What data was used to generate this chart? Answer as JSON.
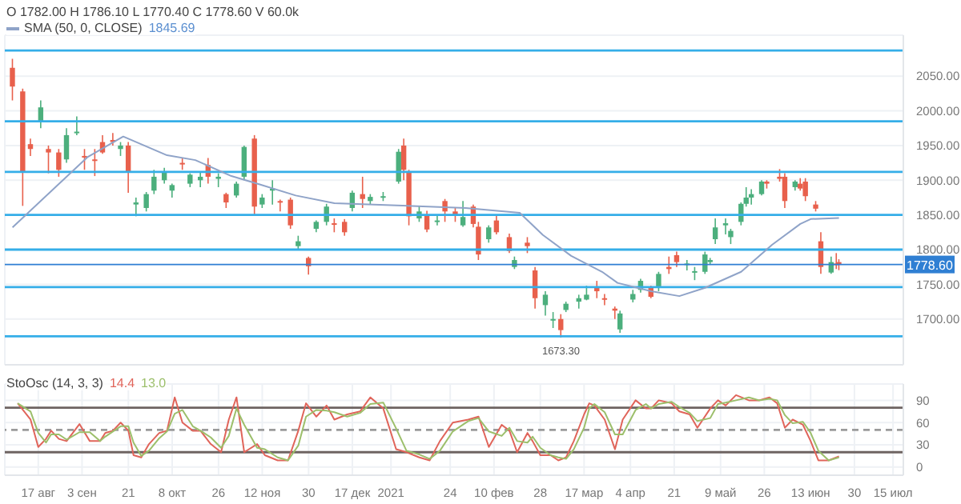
{
  "chart_data": [
    {
      "type": "candlestick",
      "legend": "top left",
      "grid": true,
      "tick_labels": "y",
      "annotations": [
        "O 1782.00 H 1786.10 L 1770.40 C 1778.60 V 60.0k",
        "1845.69",
        {
          "text": "1673.30",
          "x": "2021-03-08",
          "y": 1673.3
        }
      ],
      "x": [
        "2020-08-07",
        "2020-08-11",
        "2020-08-14",
        "2020-08-18",
        "2020-08-21",
        "2020-08-25",
        "2020-08-28",
        "2020-09-01",
        "2020-09-04",
        "2020-09-08",
        "2020-09-11",
        "2020-09-15",
        "2020-09-18",
        "2020-09-21",
        "2020-09-24",
        "2020-09-28",
        "2020-10-01",
        "2020-10-05",
        "2020-10-08",
        "2020-10-12",
        "2020-10-15",
        "2020-10-19",
        "2020-10-22",
        "2020-10-26",
        "2020-10-29",
        "2020-11-02",
        "2020-11-05",
        "2020-11-09",
        "2020-11-12",
        "2020-11-16",
        "2020-11-19",
        "2020-11-23",
        "2020-11-26",
        "2020-11-30",
        "2020-12-03",
        "2020-12-07",
        "2020-12-10",
        "2020-12-14",
        "2020-12-17",
        "2020-12-21",
        "2020-12-24",
        "2020-12-29",
        "2021-01-04",
        "2021-01-06",
        "2021-01-08",
        "2021-01-12",
        "2021-01-15",
        "2021-01-19",
        "2021-01-22",
        "2021-01-26",
        "2021-01-29",
        "2021-02-02",
        "2021-02-04",
        "2021-02-08",
        "2021-02-11",
        "2021-02-16",
        "2021-02-18",
        "2021-02-23",
        "2021-02-26",
        "2021-03-02",
        "2021-03-05",
        "2021-03-08",
        "2021-03-10",
        "2021-03-15",
        "2021-03-18",
        "2021-03-22",
        "2021-03-25",
        "2021-03-29",
        "2021-03-31",
        "2021-04-05",
        "2021-04-08",
        "2021-04-12",
        "2021-04-15",
        "2021-04-19",
        "2021-04-22",
        "2021-04-26",
        "2021-04-29",
        "2021-05-03",
        "2021-05-05",
        "2021-05-07",
        "2021-05-11",
        "2021-05-13",
        "2021-05-17",
        "2021-05-19",
        "2021-05-21",
        "2021-05-25",
        "2021-05-27",
        "2021-06-01",
        "2021-06-03",
        "2021-06-07",
        "2021-06-09",
        "2021-06-11",
        "2021-06-15",
        "2021-06-17",
        "2021-06-21",
        "2021-06-23",
        "2021-06-24"
      ],
      "ohlc": [
        [
          2062,
          2075,
          2015,
          2035
        ],
        [
          2028,
          2032,
          1863,
          1912
        ],
        [
          1952,
          1960,
          1935,
          1945
        ],
        [
          1985,
          2015,
          1975,
          2005
        ],
        [
          1945,
          1950,
          1910,
          1940
        ],
        [
          1940,
          1945,
          1905,
          1915
        ],
        [
          1930,
          1975,
          1925,
          1965
        ],
        [
          1968,
          1992,
          1965,
          1970
        ],
        [
          1935,
          1945,
          1915,
          1933
        ],
        [
          1930,
          1945,
          1906,
          1928
        ],
        [
          1955,
          1965,
          1938,
          1940
        ],
        [
          1958,
          1968,
          1950,
          1955
        ],
        [
          1945,
          1955,
          1935,
          1950
        ],
        [
          1950,
          1955,
          1882,
          1912
        ],
        [
          1865,
          1875,
          1848,
          1868
        ],
        [
          1860,
          1883,
          1855,
          1880
        ],
        [
          1885,
          1915,
          1880,
          1905
        ],
        [
          1900,
          1918,
          1895,
          1912
        ],
        [
          1885,
          1895,
          1875,
          1893
        ],
        [
          1925,
          1932,
          1915,
          1923
        ],
        [
          1895,
          1910,
          1890,
          1908
        ],
        [
          1900,
          1912,
          1890,
          1905
        ],
        [
          1922,
          1932,
          1895,
          1905
        ],
        [
          1902,
          1910,
          1890,
          1905
        ],
        [
          1880,
          1882,
          1860,
          1868
        ],
        [
          1878,
          1898,
          1875,
          1895
        ],
        [
          1905,
          1950,
          1900,
          1948
        ],
        [
          1960,
          1965,
          1850,
          1862
        ],
        [
          1865,
          1880,
          1860,
          1875
        ],
        [
          1885,
          1900,
          1865,
          1888
        ],
        [
          1870,
          1872,
          1855,
          1868
        ],
        [
          1872,
          1875,
          1830,
          1835
        ],
        [
          1805,
          1820,
          1800,
          1812
        ],
        [
          1788,
          1790,
          1764,
          1776
        ],
        [
          1830,
          1842,
          1825,
          1840
        ],
        [
          1840,
          1866,
          1835,
          1862
        ],
        [
          1838,
          1845,
          1825,
          1837
        ],
        [
          1840,
          1844,
          1820,
          1825
        ],
        [
          1860,
          1885,
          1855,
          1882
        ],
        [
          1880,
          1905,
          1860,
          1873
        ],
        [
          1870,
          1880,
          1865,
          1876
        ],
        [
          1875,
          1883,
          1870,
          1877
        ],
        [
          1898,
          1945,
          1895,
          1941
        ],
        [
          1950,
          1960,
          1900,
          1915
        ],
        [
          1912,
          1915,
          1835,
          1848
        ],
        [
          1845,
          1863,
          1840,
          1855
        ],
        [
          1850,
          1856,
          1825,
          1829
        ],
        [
          1840,
          1850,
          1835,
          1842
        ],
        [
          1870,
          1873,
          1840,
          1855
        ],
        [
          1855,
          1860,
          1840,
          1850
        ],
        [
          1835,
          1870,
          1833,
          1847
        ],
        [
          1862,
          1865,
          1832,
          1837
        ],
        [
          1833,
          1840,
          1785,
          1793
        ],
        [
          1815,
          1835,
          1810,
          1832
        ],
        [
          1842,
          1850,
          1822,
          1825
        ],
        [
          1818,
          1823,
          1795,
          1798
        ],
        [
          1775,
          1790,
          1772,
          1785
        ],
        [
          1810,
          1818,
          1795,
          1805
        ],
        [
          1770,
          1775,
          1715,
          1730
        ],
        [
          1720,
          1740,
          1705,
          1735
        ],
        [
          1698,
          1710,
          1687,
          1700
        ],
        [
          1700,
          1707,
          1673.3,
          1684
        ],
        [
          1713,
          1725,
          1710,
          1722
        ],
        [
          1725,
          1735,
          1715,
          1730
        ],
        [
          1728,
          1748,
          1727,
          1735
        ],
        [
          1745,
          1755,
          1730,
          1740
        ],
        [
          1730,
          1736,
          1720,
          1728
        ],
        [
          1715,
          1718,
          1700,
          1712
        ],
        [
          1685,
          1712,
          1680,
          1708
        ],
        [
          1728,
          1742,
          1724,
          1736
        ],
        [
          1742,
          1758,
          1738,
          1755
        ],
        [
          1745,
          1748,
          1730,
          1732
        ],
        [
          1745,
          1768,
          1740,
          1765
        ],
        [
          1775,
          1790,
          1765,
          1772
        ],
        [
          1792,
          1797,
          1775,
          1782
        ],
        [
          1778,
          1785,
          1770,
          1780
        ],
        [
          1768,
          1775,
          1756,
          1769
        ],
        [
          1768,
          1797,
          1765,
          1793
        ],
        [
          1782,
          1788,
          1778,
          1785
        ],
        [
          1815,
          1845,
          1808,
          1832
        ],
        [
          1835,
          1845,
          1822,
          1838
        ],
        [
          1818,
          1830,
          1808,
          1827
        ],
        [
          1840,
          1868,
          1835,
          1866
        ],
        [
          1866,
          1890,
          1862,
          1875
        ],
        [
          1875,
          1887,
          1865,
          1880
        ],
        [
          1880,
          1900,
          1878,
          1898
        ],
        [
          1898,
          1900,
          1888,
          1895
        ],
        [
          1905,
          1916,
          1898,
          1902
        ],
        [
          1905,
          1910,
          1860,
          1870
        ],
        [
          1890,
          1900,
          1885,
          1898
        ],
        [
          1895,
          1903,
          1885,
          1888
        ],
        [
          1898,
          1903,
          1870,
          1877
        ],
        [
          1865,
          1870,
          1855,
          1859
        ],
        [
          1812,
          1825,
          1765,
          1775
        ],
        [
          1767,
          1790,
          1765,
          1782
        ],
        [
          1780,
          1795,
          1772,
          1778
        ],
        [
          1782,
          1786.1,
          1770.4,
          1778.6
        ]
      ],
      "colors": [
        "#e8604c",
        "#e8604c",
        "#e8604c",
        "#4caf7d",
        "#e8604c",
        "#e8604c",
        "#4caf7d",
        "#4caf7d",
        "#e8604c",
        "#e8604c",
        "#e8604c",
        "#e8604c",
        "#4caf7d",
        "#e8604c",
        "#4caf7d",
        "#4caf7d",
        "#4caf7d",
        "#4caf7d",
        "#4caf7d",
        "#e8604c",
        "#4caf7d",
        "#4caf7d",
        "#e8604c",
        "#4caf7d",
        "#e8604c",
        "#4caf7d",
        "#4caf7d",
        "#e8604c",
        "#4caf7d",
        "#4caf7d",
        "#e8604c",
        "#e8604c",
        "#4caf7d",
        "#e8604c",
        "#4caf7d",
        "#4caf7d",
        "#e8604c",
        "#e8604c",
        "#4caf7d",
        "#e8604c",
        "#4caf7d",
        "#4caf7d",
        "#4caf7d",
        "#e8604c",
        "#e8604c",
        "#4caf7d",
        "#e8604c",
        "#4caf7d",
        "#e8604c",
        "#e8604c",
        "#4caf7d",
        "#e8604c",
        "#e8604c",
        "#4caf7d",
        "#e8604c",
        "#e8604c",
        "#4caf7d",
        "#e8604c",
        "#e8604c",
        "#4caf7d",
        "#4caf7d",
        "#e8604c",
        "#4caf7d",
        "#4caf7d",
        "#4caf7d",
        "#e8604c",
        "#e8604c",
        "#e8604c",
        "#4caf7d",
        "#4caf7d",
        "#4caf7d",
        "#e8604c",
        "#4caf7d",
        "#e8604c",
        "#e8604c",
        "#4caf7d",
        "#4caf7d",
        "#4caf7d",
        "#4caf7d",
        "#4caf7d",
        "#4caf7d",
        "#4caf7d",
        "#4caf7d",
        "#4caf7d",
        "#4caf7d",
        "#4caf7d",
        "#e8604c",
        "#e8604c",
        "#e8604c",
        "#4caf7d",
        "#e8604c",
        "#e8604c",
        "#e8604c",
        "#e8604c",
        "#4caf7d",
        "#e8604c",
        "#e8604c"
      ],
      "series": [
        {
          "type": "line",
          "name": "SMA (50, 0, CLOSE)",
          "color": "#8fa3c8",
          "x": [
            "2020-08-07",
            "2020-09-05",
            "2020-09-19",
            "2020-10-06",
            "2020-10-17",
            "2020-10-31",
            "2020-11-11",
            "2020-11-25",
            "2020-12-10",
            "2021-01-01",
            "2021-01-30",
            "2021-02-20",
            "2021-03-01",
            "2021-03-12",
            "2021-03-24",
            "2021-03-30",
            "2021-04-12",
            "2021-04-23",
            "2021-05-03",
            "2021-05-17",
            "2021-05-29",
            "2021-06-09",
            "2021-06-13",
            "2021-06-24"
          ],
          "values": [
            1832,
            1933,
            1963,
            1936,
            1929,
            1906,
            1894,
            1878,
            1867,
            1864,
            1860,
            1853,
            1821,
            1791,
            1768,
            1752,
            1740,
            1733,
            1745,
            1768,
            1807,
            1837,
            1844,
            1845.69
          ]
        }
      ],
      "xlim": [
        "2020-08-04",
        "2021-07-19"
      ],
      "xticks": [
        {
          "value": "2020-08-17",
          "label": null
        },
        {
          "value": "2020-09-03",
          "label": null
        },
        {
          "value": "2020-09-21",
          "label": null
        },
        {
          "value": "2020-10-08",
          "label": null
        },
        {
          "value": "2020-10-26",
          "label": null
        },
        {
          "value": "2020-11-12",
          "label": null
        },
        {
          "value": "2020-11-30",
          "label": null
        },
        {
          "value": "2020-12-17",
          "label": null
        },
        {
          "value": "2021-01-01",
          "label": null
        },
        {
          "value": "2021-01-24",
          "label": null
        },
        {
          "value": "2021-02-10",
          "label": null
        },
        {
          "value": "2021-02-28",
          "label": null
        },
        {
          "value": "2021-03-17",
          "label": null
        },
        {
          "value": "2021-04-04",
          "label": null
        },
        {
          "value": "2021-04-21",
          "label": null
        },
        {
          "value": "2021-05-09",
          "label": null
        },
        {
          "value": "2021-05-26",
          "label": null
        },
        {
          "value": "2021-06-13",
          "label": null
        },
        {
          "value": "2021-06-30",
          "label": null
        },
        {
          "value": "2021-07-15",
          "label": null
        }
      ],
      "ylim": [
        1634,
        2109
      ],
      "yticks": [
        {
          "value": 1700,
          "label": "1700.00"
        },
        {
          "value": 1750,
          "label": "1750.00"
        },
        {
          "value": 1800,
          "label": "1800.00"
        },
        {
          "value": 1850,
          "label": "1850.00"
        },
        {
          "value": 1900,
          "label": "1900.00"
        },
        {
          "value": 1950,
          "label": "1950.00"
        },
        {
          "value": 2000,
          "label": "2000.00"
        },
        {
          "value": 2050,
          "label": "2050.00"
        }
      ],
      "ref_lines": [
        {
          "axis": "y",
          "value": 2087,
          "color": "#35aee8"
        },
        {
          "axis": "y",
          "value": 1985,
          "color": "#35aee8"
        },
        {
          "axis": "y",
          "value": 1912,
          "color": "#35aee8"
        },
        {
          "axis": "y",
          "value": 1850,
          "color": "#35aee8"
        },
        {
          "axis": "y",
          "value": 1800,
          "color": "#35aee8"
        },
        {
          "axis": "y",
          "value": 1746,
          "color": "#35aee8"
        },
        {
          "axis": "y",
          "value": 1675,
          "color": "#35aee8"
        },
        {
          "axis": "y",
          "value": 1778.6,
          "label": "1778.60",
          "color": "#2f7fd3"
        }
      ]
    },
    {
      "type": "line",
      "title": "StoOsc (14, 3, 3)",
      "legend": "top left",
      "grid": true,
      "x": [
        "2020-08-09",
        "2020-08-14",
        "2020-08-17",
        "2020-08-20",
        "2020-08-22",
        "2020-08-25",
        "2020-08-28",
        "2020-09-02",
        "2020-09-06",
        "2020-09-10",
        "2020-09-12",
        "2020-09-15",
        "2020-09-18",
        "2020-09-21",
        "2020-09-23",
        "2020-09-26",
        "2020-09-29",
        "2020-10-03",
        "2020-10-06",
        "2020-10-09",
        "2020-10-12",
        "2020-10-16",
        "2020-10-19",
        "2020-10-23",
        "2020-10-27",
        "2020-10-30",
        "2020-11-02",
        "2020-11-05",
        "2020-11-10",
        "2020-11-13",
        "2020-11-18",
        "2020-11-22",
        "2020-11-26",
        "2020-11-29",
        "2020-12-03",
        "2020-12-07",
        "2020-12-10",
        "2020-12-15",
        "2020-12-20",
        "2020-12-24",
        "2020-12-29",
        "2021-01-03",
        "2021-01-07",
        "2021-01-12",
        "2021-01-16",
        "2021-01-20",
        "2021-01-25",
        "2021-01-31",
        "2021-02-04",
        "2021-02-08",
        "2021-02-13",
        "2021-02-16",
        "2021-02-19",
        "2021-02-23",
        "2021-02-25",
        "2021-02-28",
        "2021-03-04",
        "2021-03-07",
        "2021-03-10",
        "2021-03-13",
        "2021-03-17",
        "2021-03-19",
        "2021-03-21",
        "2021-03-25",
        "2021-03-29",
        "2021-04-01",
        "2021-04-06",
        "2021-04-10",
        "2021-04-12",
        "2021-04-15",
        "2021-04-20",
        "2021-04-23",
        "2021-04-27",
        "2021-04-30",
        "2021-05-05",
        "2021-05-08",
        "2021-05-11",
        "2021-05-15",
        "2021-05-20",
        "2021-05-24",
        "2021-05-28",
        "2021-05-31",
        "2021-06-03",
        "2021-06-06",
        "2021-06-10",
        "2021-06-13",
        "2021-06-16",
        "2021-06-20",
        "2021-06-24"
      ],
      "series": [
        {
          "name": "14.4",
          "color": "#e0645a",
          "values": [
            86,
            64,
            27,
            38,
            49,
            38,
            35,
            58,
            35,
            35,
            46,
            49,
            60,
            49,
            16,
            13,
            31,
            46,
            49,
            94,
            60,
            49,
            49,
            31,
            20,
            64,
            94,
            20,
            31,
            16,
            9,
            9,
            49,
            86,
            68,
            83,
            64,
            71,
            75,
            94,
            79,
            24,
            20,
            13,
            9,
            35,
            60,
            64,
            68,
            27,
            57,
            49,
            20,
            46,
            35,
            16,
            16,
            9,
            13,
            35,
            71,
            86,
            83,
            64,
            24,
            64,
            90,
            79,
            79,
            90,
            86,
            75,
            71,
            53,
            79,
            90,
            83,
            97,
            90,
            90,
            94,
            86,
            53,
            64,
            57,
            35,
            9,
            9,
            14.4
          ]
        },
        {
          "name": "13.0",
          "color": "#9cbf6b",
          "values": [
            86,
            75,
            46,
            33,
            44,
            44,
            37,
            47,
            47,
            35,
            41,
            48,
            55,
            55,
            33,
            15,
            22,
            39,
            48,
            72,
            77,
            55,
            49,
            40,
            26,
            42,
            79,
            57,
            26,
            24,
            13,
            9,
            29,
            68,
            77,
            76,
            74,
            68,
            73,
            85,
            87,
            52,
            22,
            17,
            11,
            22,
            48,
            62,
            66,
            48,
            42,
            53,
            35,
            33,
            41,
            26,
            16,
            13,
            11,
            24,
            53,
            79,
            85,
            74,
            44,
            44,
            77,
            85,
            79,
            85,
            88,
            81,
            73,
            62,
            66,
            85,
            87,
            90,
            94,
            90,
            92,
            90,
            70,
            59,
            61,
            46,
            22,
            9,
            13.0
          ]
        }
      ],
      "xlim": [
        "2020-08-04",
        "2021-07-19"
      ],
      "xticks": [
        {
          "value": "2020-08-17",
          "label": "17 авг"
        },
        {
          "value": "2020-09-03",
          "label": "3 сен"
        },
        {
          "value": "2020-09-21",
          "label": "21"
        },
        {
          "value": "2020-10-08",
          "label": "8 окт"
        },
        {
          "value": "2020-10-26",
          "label": "26"
        },
        {
          "value": "2020-11-12",
          "label": "12 ноя"
        },
        {
          "value": "2020-11-30",
          "label": "30"
        },
        {
          "value": "2020-12-17",
          "label": "17 дек"
        },
        {
          "value": "2021-01-01",
          "label": "2021"
        },
        {
          "value": "2021-01-24",
          "label": "24"
        },
        {
          "value": "2021-02-10",
          "label": "10 фев"
        },
        {
          "value": "2021-02-28",
          "label": "28"
        },
        {
          "value": "2021-03-17",
          "label": "17 мар"
        },
        {
          "value": "2021-04-04",
          "label": "4 апр"
        },
        {
          "value": "2021-04-21",
          "label": "21"
        },
        {
          "value": "2021-05-09",
          "label": "9 май"
        },
        {
          "value": "2021-05-26",
          "label": "26"
        },
        {
          "value": "2021-06-13",
          "label": "13 июн"
        },
        {
          "value": "2021-06-30",
          "label": "30"
        },
        {
          "value": "2021-07-15",
          "label": "15 июл"
        }
      ],
      "ylim": [
        -11,
        112
      ],
      "yticks": [
        0,
        30,
        60,
        90
      ],
      "ref_lines": [
        {
          "axis": "y",
          "value": 80,
          "color": "#6e6462",
          "line_style": "solid"
        },
        {
          "axis": "y",
          "value": 50,
          "color": "#9a9a9a",
          "line_style": "dashed"
        },
        {
          "axis": "y",
          "value": 20,
          "color": "#6e6462",
          "line_style": "solid"
        }
      ]
    }
  ]
}
